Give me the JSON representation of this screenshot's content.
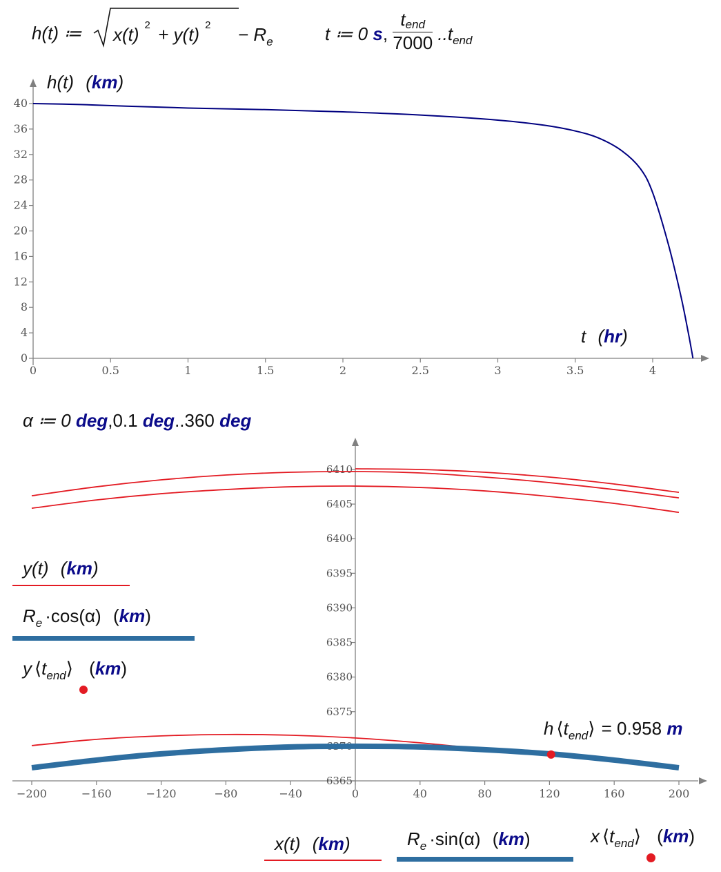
{
  "header": {
    "def_h_lhs": "h(t) ≔",
    "sqrt_body": "x(t)",
    "sqrt_sup1": "2",
    "sqrt_plus": "+ y(t)",
    "sqrt_sup2": "2",
    "minus_re": "− R",
    "re_sub": "e",
    "t_def": "t ≔ 0",
    "t_unit": "s",
    "frac_num": "t",
    "frac_num_sub": "end",
    "frac_den": "7000",
    "range_dots": "..t",
    "range_sub": "end"
  },
  "alpha_def": {
    "prefix": "α ≔ 0",
    "unit1": "deg",
    "mid": ",0.1",
    "unit2": "deg",
    "dots": "..360",
    "unit3": "deg"
  },
  "colors": {
    "curve_blue": "#000080",
    "red": "#e31b23",
    "steel": "#2e6ea0",
    "axis": "#808080",
    "unit": "#0b0b8a"
  },
  "chart_data": [
    {
      "type": "line",
      "title": "",
      "ylabel": "h(t)",
      "ylabel_unit": "km",
      "xlabel": "t",
      "xlabel_unit": "hr",
      "xlim": [
        0,
        4.35
      ],
      "ylim": [
        0,
        41
      ],
      "x_ticks": [
        "0",
        "0.5",
        "1",
        "1.5",
        "2",
        "2.5",
        "3",
        "3.5",
        "4"
      ],
      "y_ticks": [
        "0",
        "4",
        "8",
        "12",
        "16",
        "20",
        "24",
        "28",
        "32",
        "36",
        "40"
      ],
      "grid": false,
      "series": [
        {
          "x": [
            0,
            0.3,
            0.6,
            1.0,
            1.5,
            2.0,
            2.5,
            3.0,
            3.3,
            3.5,
            3.65,
            3.8,
            3.92,
            4.0,
            4.1,
            4.18,
            4.23,
            4.26
          ],
          "values": [
            40,
            39.85,
            39.6,
            39.3,
            39.05,
            38.7,
            38.2,
            37.4,
            36.6,
            35.7,
            34.6,
            32.6,
            29.8,
            26,
            18,
            10,
            4,
            0
          ]
        }
      ]
    },
    {
      "type": "line",
      "title": "",
      "xlim": [
        -205,
        215
      ],
      "ylim": [
        6364.9,
        6413
      ],
      "x_ticks": [
        "−200",
        "−160",
        "−120",
        "−80",
        "−40",
        "0",
        "40",
        "80",
        "120",
        "160",
        "200"
      ],
      "y_ticks": [
        "6365",
        "6370",
        "6375",
        "6380",
        "6385",
        "6390",
        "6395",
        "6400",
        "6405",
        "6410"
      ],
      "grid": false,
      "legend_y": [
        "y(t)  (km)",
        "Re·cos(α)  (km)",
        "y⟨tend⟩  (km)"
      ],
      "legend_x": [
        "x(t)  (km)",
        "Re·sin(α)  (km)",
        "x⟨tend⟩  (km)"
      ],
      "series": [
        {
          "name": "y(t)",
          "x": [
            -200,
            -160,
            -120,
            -80,
            -40,
            0,
            40,
            80,
            120,
            160,
            200
          ],
          "values": [
            6406.2,
            6407.5,
            6408.5,
            6409.2,
            6409.6,
            6409.7,
            6409.5,
            6408.9,
            6408.1,
            6407.1,
            6405.9
          ]
        },
        {
          "name": "y(t)",
          "x": [
            0,
            40,
            80,
            120,
            160,
            200
          ],
          "values": [
            6410.1,
            6410.0,
            6409.6,
            6408.9,
            6407.9,
            6406.7
          ]
        },
        {
          "name": "y(t)",
          "x": [
            -200,
            -160,
            -120,
            -80,
            -40,
            0,
            40,
            80,
            120,
            160,
            200
          ],
          "values": [
            6404.4,
            6405.6,
            6406.5,
            6407.1,
            6407.5,
            6407.6,
            6407.4,
            6406.9,
            6406.1,
            6405.1,
            6403.8
          ]
        },
        {
          "name": "y(t)",
          "x": [
            -200,
            -160,
            -120,
            -80,
            -40,
            0,
            40,
            80,
            120
          ],
          "values": [
            6370.1,
            6371.0,
            6371.5,
            6371.7,
            6371.6,
            6371.2,
            6370.5,
            6369.6,
            6368.8
          ]
        },
        {
          "name": "Re·cos(α)",
          "x": [
            -200,
            -160,
            -120,
            -80,
            -40,
            0,
            40,
            80,
            120,
            160,
            200
          ],
          "values": [
            6366.9,
            6368.0,
            6368.9,
            6369.5,
            6369.9,
            6370.0,
            6369.9,
            6369.5,
            6368.9,
            6368.0,
            6366.9
          ]
        }
      ],
      "points": [
        {
          "x": 121,
          "y": 6368.8
        }
      ],
      "annotation": {
        "lhs": "h",
        "sub": "end",
        "rhs": "= 0.958",
        "unit": "m"
      }
    }
  ],
  "labels": {
    "y_t": "y(t)",
    "km": "km",
    "re": "R",
    "re_sub": "e",
    "cos_alpha": "·cos(α)",
    "y_tend": "y",
    "tend_t": "t",
    "tend_sub": "end",
    "x_t": "x(t)",
    "sin_alpha": "·sin(α)",
    "x_tend": "x",
    "h_tend": "h",
    "h_eq": "= 0.958",
    "m": "m",
    "h_of_t": "h(t)",
    "t": "t",
    "hr": "hr"
  }
}
